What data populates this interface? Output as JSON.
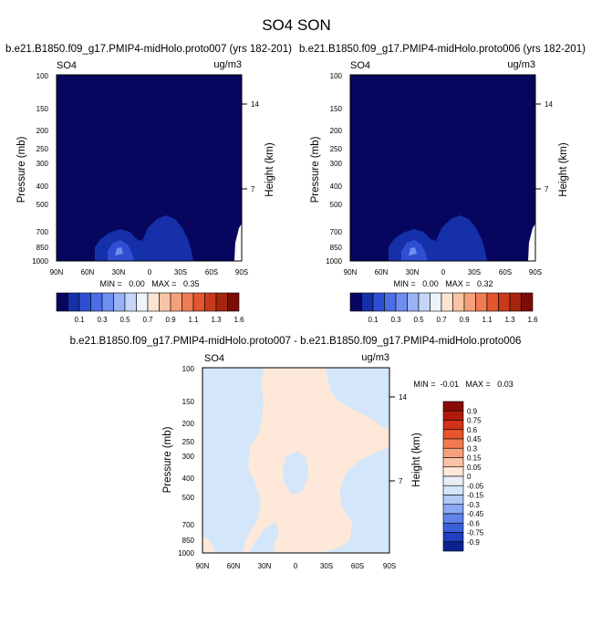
{
  "page": {
    "title": "SO4 SON"
  },
  "panels": [
    {
      "run_title": "b.e21.B1850.f09_g17.PMIP4-midHolo.proto007 (yrs 182-201)",
      "variable": "SO4",
      "units": "ug/m3",
      "stats": "MIN =   0.00   MAX =   0.35"
    },
    {
      "run_title": "b.e21.B1850.f09_g17.PMIP4-midHolo.proto006 (yrs 182-201)",
      "variable": "SO4",
      "units": "ug/m3",
      "stats": "MIN =   0.00   MAX =   0.32"
    },
    {
      "run_title": "b.e21.B1850.f09_g17.PMIP4-midHolo.proto007 - b.e21.B1850.f09_g17.PMIP4-midHolo.proto006",
      "variable": "SO4",
      "units": "ug/m3",
      "stats": "MIN =  -0.01   MAX =   0.03"
    }
  ],
  "colorbars": {
    "absolute": {
      "labels": [
        "0.1",
        "0.3",
        "0.5",
        "0.7",
        "0.9",
        "1.1",
        "1.3",
        "1.6"
      ],
      "colors": [
        "#06065f",
        "#1530a8",
        "#2f4fd2",
        "#4b6ee6",
        "#6f8ff0",
        "#98b2f6",
        "#c6d6fb",
        "#eef2fb",
        "#fbe3d2",
        "#f8c5a4",
        "#f4a07b",
        "#ef7b55",
        "#e3562f",
        "#c93a1b",
        "#a5250f",
        "#7b0c06"
      ]
    },
    "difference": {
      "labels": [
        "0.9",
        "0.75",
        "0.6",
        "0.45",
        "0.3",
        "0.15",
        "0.05",
        "0",
        "-0.05",
        "-0.15",
        "-0.3",
        "-0.45",
        "-0.6",
        "-0.75",
        "-0.9"
      ],
      "colors": [
        "#8a0c07",
        "#b01a0c",
        "#d2321a",
        "#e8552f",
        "#f27a52",
        "#f69f7b",
        "#f9c3a5",
        "#fde8d9",
        "#e9edf4",
        "#d3e6fa",
        "#b0c9f7",
        "#8aa9f2",
        "#5f84ea",
        "#3a5fdb",
        "#1f3fbf",
        "#0b2091"
      ]
    }
  },
  "chart_data": [
    {
      "type": "heatmap",
      "title": "b.e21.B1850.f09_g17.PMIP4-midHolo.proto007 (yrs 182-201)",
      "xlabel": "",
      "ylabel": "Pressure (mb)",
      "y2label": "Height (km)",
      "x_ticks": [
        "90N",
        "60N",
        "30N",
        "0",
        "30S",
        "60S",
        "90S"
      ],
      "x_values": [
        90,
        60,
        30,
        0,
        -30,
        -60,
        -90
      ],
      "y_ticks": [
        100,
        150,
        200,
        250,
        300,
        400,
        500,
        700,
        850,
        1000
      ],
      "y_log": true,
      "y2_ticks": [
        "14",
        "7"
      ],
      "y2_pressure": [
        141,
        411
      ],
      "min": 0.0,
      "max": 0.35,
      "background_color": "#06065f",
      "features": [
        {
          "level": 0.1,
          "color": "#1530a8",
          "shape": "hill",
          "lat_start": 52,
          "lat_end": -45,
          "top_pressure": 640
        },
        {
          "level": 0.3,
          "color": "#2f4fd2",
          "shape": "blob",
          "lat": 30,
          "pressure": 870
        },
        {
          "level": 0.5,
          "color": "#6f8ff0",
          "shape": "blob",
          "lat": 30,
          "pressure": 900
        },
        {
          "level": 0.0,
          "color": "#ffffff",
          "shape": "terrain",
          "lat_start": -85,
          "lat_end": -90,
          "top_pressure": 700
        }
      ]
    },
    {
      "type": "heatmap",
      "title": "b.e21.B1850.f09_g17.PMIP4-midHolo.proto006 (yrs 182-201)",
      "xlabel": "",
      "ylabel": "Pressure (mb)",
      "y2label": "Height (km)",
      "x_ticks": [
        "90N",
        "60N",
        "30N",
        "0",
        "30S",
        "60S",
        "90S"
      ],
      "x_values": [
        90,
        60,
        30,
        0,
        -30,
        -60,
        -90
      ],
      "y_ticks": [
        100,
        150,
        200,
        250,
        300,
        400,
        500,
        700,
        850,
        1000
      ],
      "y_log": true,
      "y2_ticks": [
        "14",
        "7"
      ],
      "y2_pressure": [
        141,
        411
      ],
      "min": 0.0,
      "max": 0.32,
      "background_color": "#06065f",
      "features": [
        {
          "level": 0.1,
          "color": "#1530a8",
          "shape": "hill",
          "lat_start": 52,
          "lat_end": -45,
          "top_pressure": 640
        },
        {
          "level": 0.3,
          "color": "#2f4fd2",
          "shape": "blob",
          "lat": 30,
          "pressure": 870
        },
        {
          "level": 0.5,
          "color": "#6f8ff0",
          "shape": "blob",
          "lat": 30,
          "pressure": 900
        },
        {
          "level": 0.0,
          "color": "#ffffff",
          "shape": "terrain",
          "lat_start": -85,
          "lat_end": -90,
          "top_pressure": 700
        }
      ]
    },
    {
      "type": "heatmap",
      "title": "b.e21.B1850.f09_g17.PMIP4-midHolo.proto007 - b.e21.B1850.f09_g17.PMIP4-midHolo.proto006",
      "xlabel": "",
      "ylabel": "Pressure (mb)",
      "y2label": "Height (km)",
      "x_ticks": [
        "90N",
        "60N",
        "30N",
        "0",
        "30S",
        "60S",
        "90S"
      ],
      "x_values": [
        90,
        60,
        30,
        0,
        -30,
        -60,
        -90
      ],
      "y_ticks": [
        100,
        150,
        200,
        250,
        300,
        400,
        500,
        700,
        850,
        1000
      ],
      "y_log": true,
      "y2_ticks": [
        "14",
        "7"
      ],
      "y2_pressure": [
        141,
        411
      ],
      "min": -0.01,
      "max": 0.03,
      "background_color": "#d3e6fa",
      "features": [
        {
          "level": 0.0,
          "color": "#fde8d9",
          "shape": "band",
          "note": "0 to 0.05 region spanning ~30N to ~60S"
        }
      ]
    }
  ]
}
